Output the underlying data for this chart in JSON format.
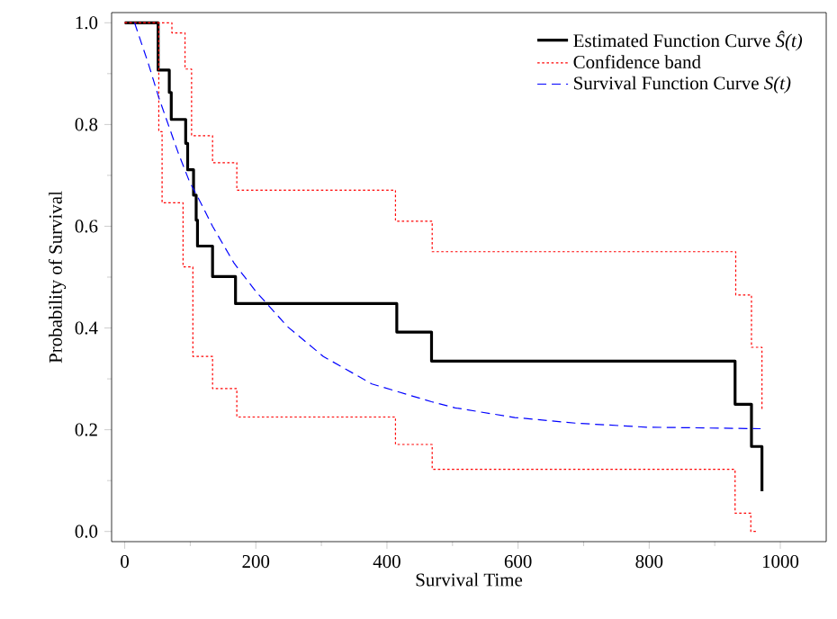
{
  "chart_data": {
    "type": "step",
    "xlabel": "Survival Time",
    "ylabel": "Probability of Survival",
    "xlim": [
      -20,
      1070
    ],
    "ylim": [
      -0.02,
      1.02
    ],
    "xticks": [
      0,
      200,
      400,
      600,
      800,
      1000
    ],
    "yticks": [
      {
        "value": 0,
        "label": "0.0"
      },
      0.2,
      0.4,
      0.6,
      0.8,
      {
        "value": 1,
        "label": "1.0"
      }
    ],
    "legend": "top right",
    "grid": false,
    "marker": "none",
    "series": [
      {
        "name": "Estimated Function Curve *Ŝ(t)*",
        "color": "#000000",
        "line_style": "solid",
        "x": [
          0,
          51,
          68,
          71,
          93,
          96,
          105,
          109,
          111,
          134,
          169,
          415,
          468,
          931,
          956,
          972
        ],
        "values": [
          1.0,
          0.907,
          0.863,
          0.81,
          0.763,
          0.711,
          0.661,
          0.612,
          0.561,
          0.501,
          0.448,
          0.392,
          0.335,
          0.25,
          0.167,
          0.079
        ]
      },
      {
        "name": "Confidence band",
        "color": "#ff0000",
        "line_style": "dotted",
        "x": [
          0,
          72,
          92,
          102,
          134,
          171,
          413,
          469,
          932,
          956,
          972
        ],
        "values": [
          1.0,
          0.98,
          0.909,
          0.778,
          0.725,
          0.671,
          0.61,
          0.55,
          0.465,
          0.362,
          0.239
        ]
      },
      {
        "color": "#ff0000",
        "line_style": "dotted",
        "x": [
          0,
          52,
          57,
          89,
          104,
          134,
          171,
          413,
          469,
          931,
          955,
          963
        ],
        "values": [
          1.0,
          0.786,
          0.646,
          0.52,
          0.344,
          0.281,
          0.225,
          0.171,
          0.122,
          0.036,
          0.0,
          0.0
        ]
      },
      {
        "name": "Survival Function Curve *S(t)*",
        "color": "#0000ff",
        "type": "line",
        "line_style": "dashed",
        "x": [
          15,
          36,
          52,
          68,
          82,
          99,
          116,
          134,
          167,
          200,
          248,
          303,
          377,
          468,
          504,
          595,
          687,
          796,
          970
        ],
        "values": [
          1.0,
          0.92,
          0.853,
          0.794,
          0.743,
          0.687,
          0.646,
          0.6,
          0.527,
          0.472,
          0.403,
          0.344,
          0.29,
          0.255,
          0.243,
          0.224,
          0.213,
          0.205,
          0.202
        ]
      }
    ]
  }
}
